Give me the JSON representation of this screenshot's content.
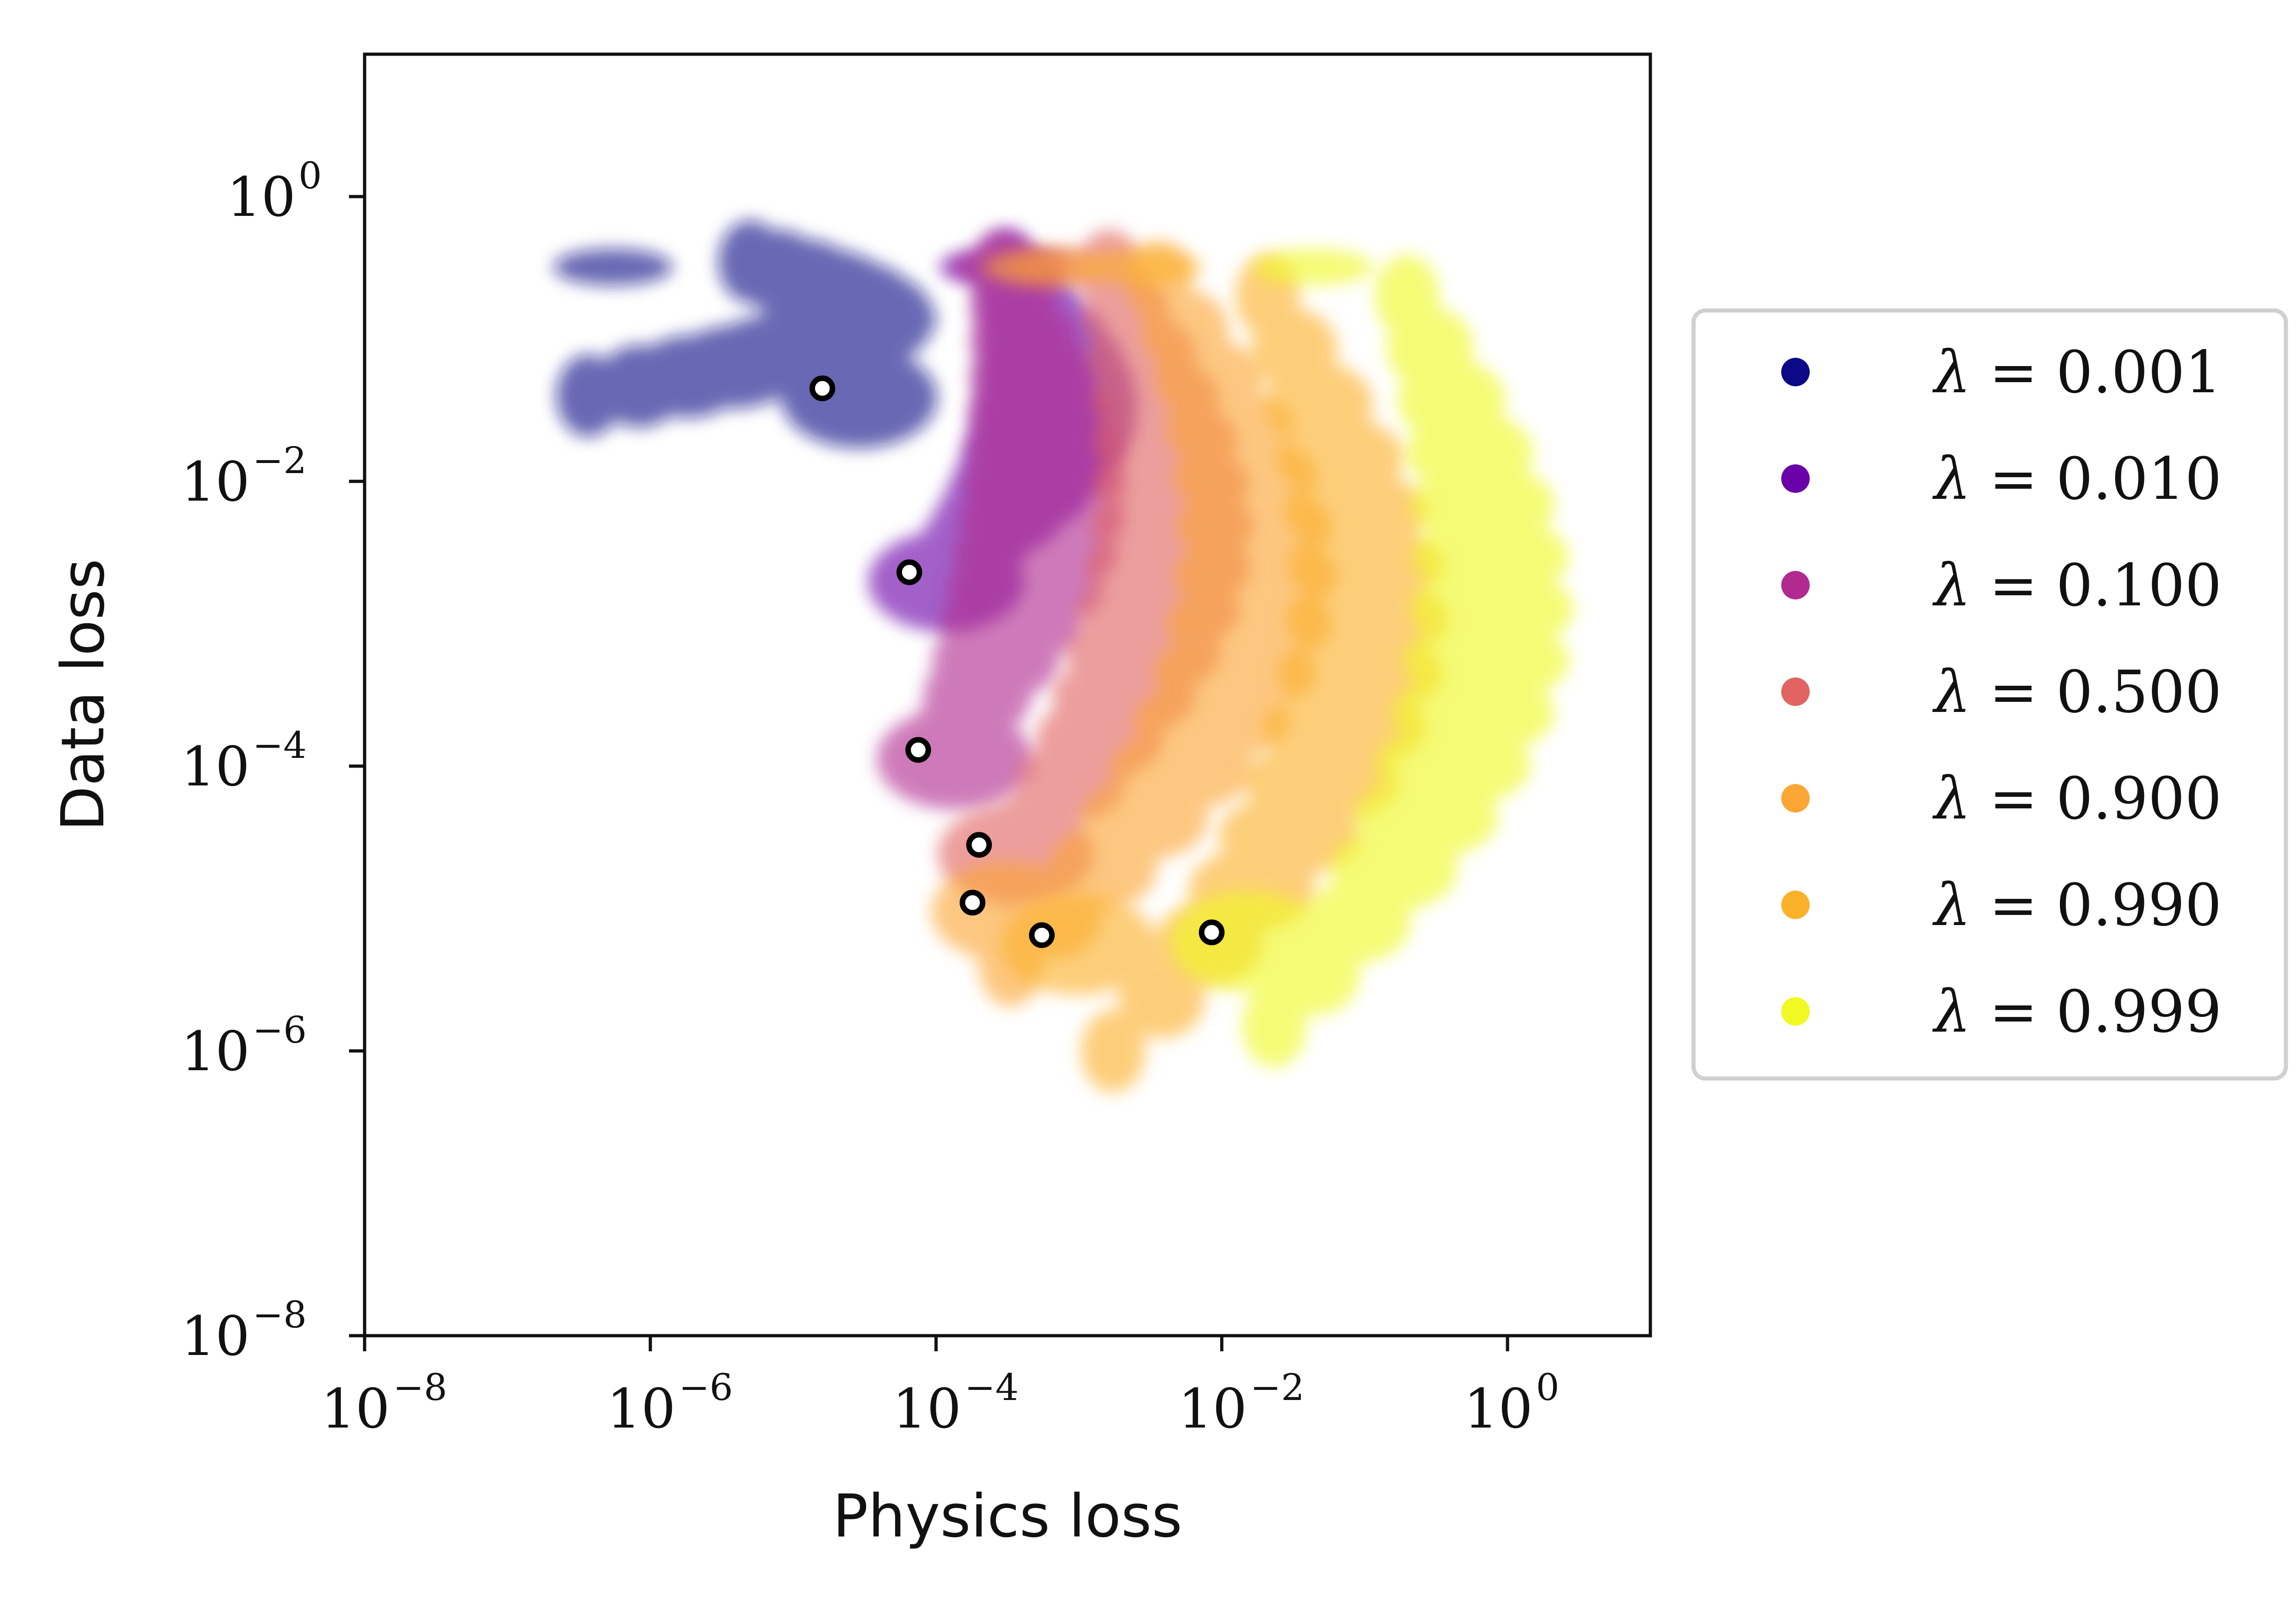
{
  "chart_data": {
    "type": "scatter",
    "xlabel": "Physics loss",
    "ylabel": "Data loss",
    "xscale": "log",
    "yscale": "log",
    "xlim": [
      1e-08,
      10
    ],
    "ylim": [
      1e-08,
      10
    ],
    "x_ticks": [
      {
        "base": "10",
        "exp": "−8",
        "value": 1e-08
      },
      {
        "base": "10",
        "exp": "−6",
        "value": 1e-06
      },
      {
        "base": "10",
        "exp": "−4",
        "value": 0.0001
      },
      {
        "base": "10",
        "exp": "−2",
        "value": 0.01
      },
      {
        "base": "10",
        "exp": "0",
        "value": 1
      }
    ],
    "y_ticks": [
      {
        "base": "10",
        "exp": "−8",
        "value": 1e-08
      },
      {
        "base": "10",
        "exp": "−6",
        "value": 1e-06
      },
      {
        "base": "10",
        "exp": "−4",
        "value": 0.0001
      },
      {
        "base": "10",
        "exp": "−2",
        "value": 0.01
      },
      {
        "base": "10",
        "exp": "0",
        "value": 1
      }
    ],
    "legend_position": "center-right, outside plot",
    "grid": false,
    "series": [
      {
        "name": "λ = 0.001",
        "lambda_text": "0.001",
        "color": "#0d0887",
        "final_point": {
          "x": 1.6e-05,
          "y": 0.045
        },
        "cloud": {
          "x_range": [
            1e-07,
            0.0006
          ],
          "y_range": [
            0.04,
            0.35
          ]
        }
      },
      {
        "name": "λ = 0.010",
        "lambda_text": "0.010",
        "color": "#6a00a8",
        "final_point": {
          "x": 6.5e-05,
          "y": 0.0023
        },
        "cloud": {
          "x_range": [
            5e-05,
            0.003
          ],
          "y_range": [
            0.002,
            0.3
          ]
        }
      },
      {
        "name": "λ = 0.100",
        "lambda_text": "0.100",
        "color": "#b12a90",
        "final_point": {
          "x": 7.5e-05,
          "y": 0.00013
        },
        "cloud": {
          "x_range": [
            6e-05,
            0.002
          ],
          "y_range": [
            0.0001,
            0.3
          ]
        }
      },
      {
        "name": "λ = 0.500",
        "lambda_text": "0.500",
        "color": "#e16462",
        "final_point": {
          "x": 0.0002,
          "y": 2.8e-05
        },
        "cloud": {
          "x_range": [
            0.00015,
            0.03
          ],
          "y_range": [
            2e-05,
            0.3
          ]
        }
      },
      {
        "name": "λ = 0.900",
        "lambda_text": "0.900",
        "color": "#fca636",
        "final_point": {
          "x": 0.00018,
          "y": 1.1e-05
        },
        "cloud": {
          "x_range": [
            0.0001,
            0.3
          ],
          "y_range": [
            4e-06,
            0.25
          ]
        }
      },
      {
        "name": "λ = 0.990",
        "lambda_text": "0.990",
        "color": "#fcb12a",
        "final_point": {
          "x": 0.00055,
          "y": 6.5e-06
        },
        "cloud": {
          "x_range": [
            0.0005,
            2
          ],
          "y_range": [
            1e-06,
            0.2
          ]
        }
      },
      {
        "name": "λ = 0.999",
        "lambda_text": "0.999",
        "color": "#f0f921",
        "final_point": {
          "x": 0.0085,
          "y": 6.8e-06
        },
        "cloud": {
          "x_range": [
            0.008,
            10
          ],
          "y_range": [
            1.5e-06,
            0.2
          ]
        }
      }
    ]
  }
}
